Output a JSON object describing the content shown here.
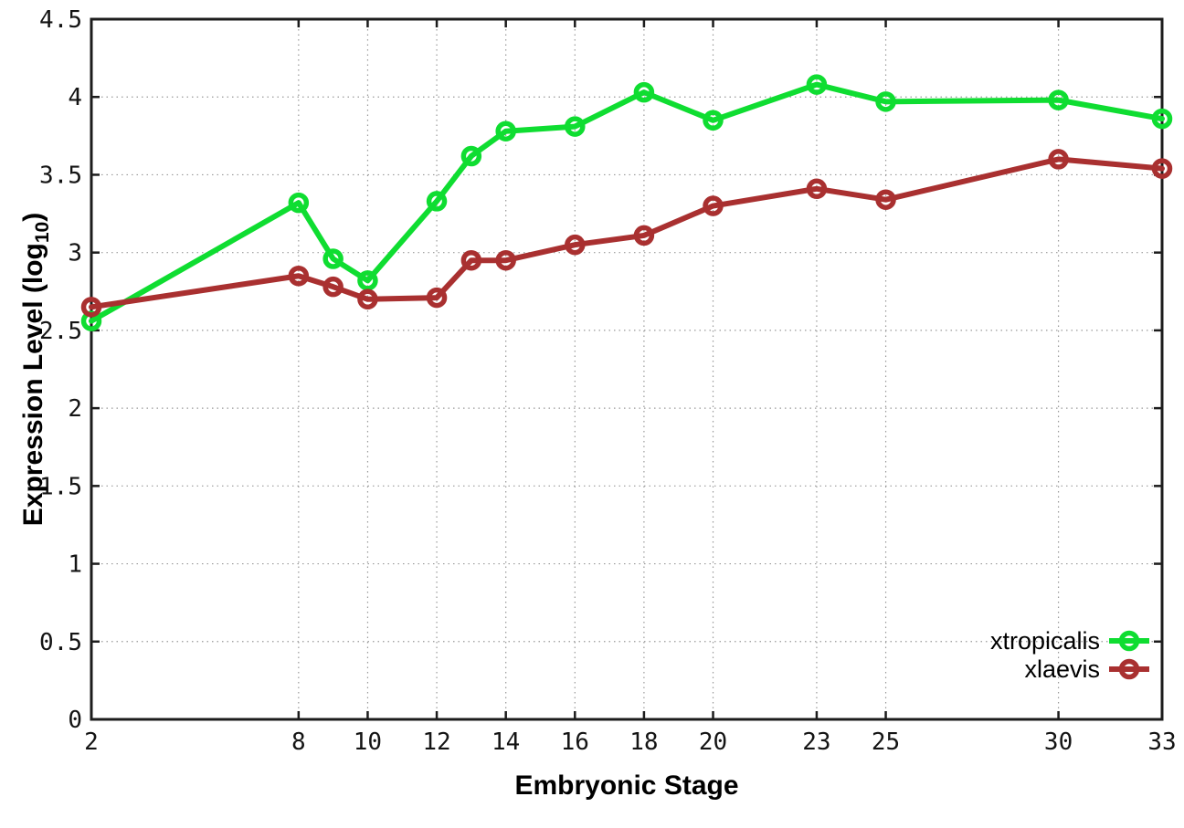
{
  "chart_data": {
    "type": "line",
    "title": "",
    "xlabel": "Embryonic Stage",
    "ylabel": {
      "text": "Expression Level (log",
      "subscript": "10",
      "suffix": ")"
    },
    "xlim": [
      2,
      33
    ],
    "ylim": [
      0,
      4.5
    ],
    "grid": true,
    "legend_position": "inside-bottom-right",
    "xticks": [
      {
        "v": 2,
        "label": "2"
      },
      {
        "v": 8,
        "label": "8"
      },
      {
        "v": 10,
        "label": "10"
      },
      {
        "v": 12,
        "label": "12"
      },
      {
        "v": 14,
        "label": "14"
      },
      {
        "v": 16,
        "label": "16"
      },
      {
        "v": 18,
        "label": "18"
      },
      {
        "v": 20,
        "label": "20"
      },
      {
        "v": 23,
        "label": "23"
      },
      {
        "v": 25,
        "label": "25"
      },
      {
        "v": 30,
        "label": "30"
      },
      {
        "v": 33,
        "label": "33"
      }
    ],
    "yticks": [
      {
        "v": 0,
        "label": "0"
      },
      {
        "v": 0.5,
        "label": "0.5"
      },
      {
        "v": 1,
        "label": "1"
      },
      {
        "v": 1.5,
        "label": "1.5"
      },
      {
        "v": 2,
        "label": "2"
      },
      {
        "v": 2.5,
        "label": "2.5"
      },
      {
        "v": 3,
        "label": "3"
      },
      {
        "v": 3.5,
        "label": "3.5"
      },
      {
        "v": 4,
        "label": "4"
      },
      {
        "v": 4.5,
        "label": "4.5"
      }
    ],
    "x": [
      2,
      8,
      9,
      10,
      12,
      13,
      14,
      16,
      18,
      20,
      23,
      25,
      30,
      33
    ],
    "series": [
      {
        "name": "xtropicalis",
        "color": "#0fdd31",
        "values": [
          2.56,
          3.32,
          2.96,
          2.82,
          3.33,
          3.62,
          3.78,
          3.81,
          4.03,
          3.85,
          4.08,
          3.97,
          3.98,
          3.86
        ]
      },
      {
        "name": "xlaevis",
        "color": "#a93030",
        "values": [
          2.65,
          2.85,
          2.78,
          2.7,
          2.71,
          2.95,
          2.95,
          3.05,
          3.11,
          3.3,
          3.41,
          3.34,
          3.6,
          3.54
        ]
      }
    ],
    "style": {
      "background": "#ffffff",
      "axis_color": "#1c1c1c",
      "grid_color": "#999999",
      "text_color": "#141414",
      "marker": "open-circle"
    }
  }
}
